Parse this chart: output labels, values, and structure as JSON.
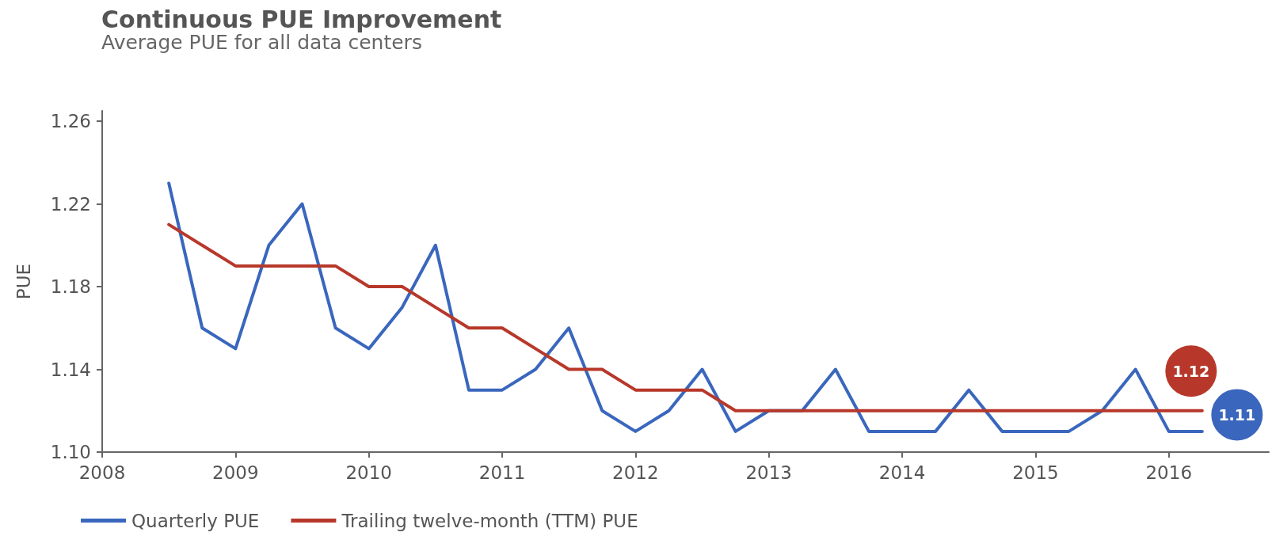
{
  "chart_data": {
    "type": "line",
    "title": "Continuous PUE Improvement",
    "subtitle": "Average PUE for all data centers",
    "ylabel": "PUE",
    "x": [
      2008.5,
      2008.75,
      2009,
      2009.25,
      2009.5,
      2009.75,
      2010,
      2010.25,
      2010.5,
      2010.75,
      2011,
      2011.25,
      2011.5,
      2011.75,
      2012,
      2012.25,
      2012.5,
      2012.75,
      2013,
      2013.25,
      2013.5,
      2013.75,
      2014,
      2014.25,
      2014.5,
      2014.75,
      2015,
      2015.25,
      2015.5,
      2015.75,
      2016,
      2016.25
    ],
    "series": [
      {
        "name": "Quarterly PUE",
        "color": "#3a67bd",
        "values": [
          1.23,
          1.16,
          1.15,
          1.2,
          1.22,
          1.16,
          1.15,
          1.17,
          1.2,
          1.13,
          1.13,
          1.14,
          1.16,
          1.12,
          1.11,
          1.12,
          1.14,
          1.11,
          1.12,
          1.12,
          1.14,
          1.11,
          1.11,
          1.11,
          1.13,
          1.11,
          1.11,
          1.11,
          1.12,
          1.14,
          1.11,
          1.11
        ],
        "value_labels": [
          null,
          null,
          null,
          null,
          null,
          null,
          null,
          null,
          null,
          null,
          null,
          null,
          null,
          null,
          null,
          null,
          null,
          null,
          null,
          null,
          null,
          null,
          null,
          null,
          null,
          null,
          null,
          null,
          null,
          null,
          null,
          "1.11"
        ]
      },
      {
        "name": "Trailing twelve-month (TTM) PUE",
        "color": "#b7382a",
        "values": [
          1.21,
          1.2,
          1.19,
          1.19,
          1.19,
          1.19,
          1.18,
          1.18,
          1.17,
          1.16,
          1.16,
          1.15,
          1.14,
          1.14,
          1.13,
          1.13,
          1.13,
          1.12,
          1.12,
          1.12,
          1.12,
          1.12,
          1.12,
          1.12,
          1.12,
          1.12,
          1.12,
          1.12,
          1.12,
          1.12,
          1.12,
          1.12
        ],
        "value_labels": [
          null,
          null,
          null,
          null,
          null,
          null,
          null,
          null,
          null,
          null,
          null,
          null,
          null,
          null,
          null,
          null,
          null,
          null,
          null,
          null,
          null,
          null,
          null,
          null,
          null,
          null,
          null,
          null,
          null,
          null,
          null,
          "1.12"
        ]
      }
    ],
    "xlim": [
      2008,
      2016.75
    ],
    "xticks": [
      2008,
      2009,
      2010,
      2011,
      2012,
      2013,
      2014,
      2015,
      2016
    ],
    "ylim": [
      1.1,
      1.265
    ],
    "yticks": [
      {
        "value": 1.1,
        "label": "1.10"
      },
      1.14,
      1.18,
      1.22,
      1.26
    ],
    "grid": false,
    "legend": "bottom left",
    "marker": "none",
    "line_style": "solid"
  }
}
